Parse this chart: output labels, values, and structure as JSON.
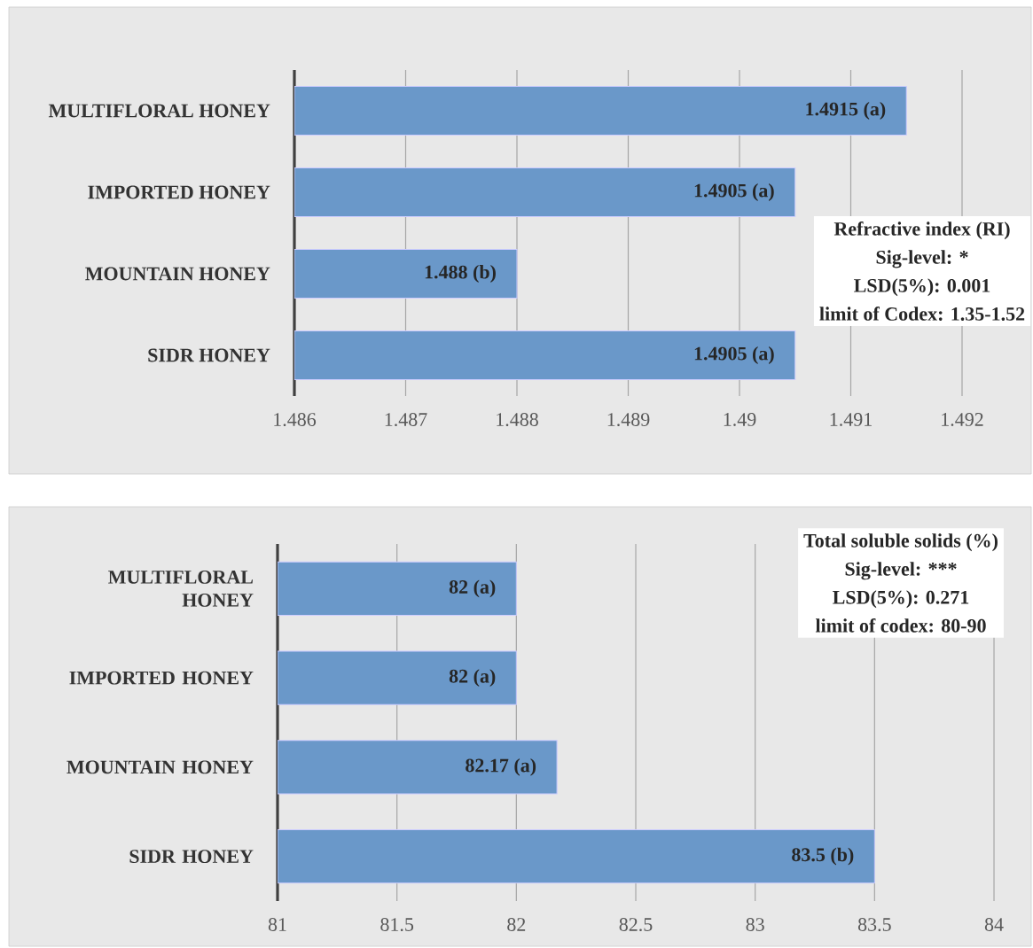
{
  "chart_data": [
    {
      "type": "bar",
      "orientation": "horizontal",
      "categories": [
        "MULTIFLORAL HONEY",
        "IMPORTED HONEY",
        "MOUNTAIN HONEY",
        "SIDR HONEY"
      ],
      "values": [
        1.4915,
        1.4905,
        1.488,
        1.4905
      ],
      "color": "#6a98c9",
      "value_labels": [
        "1.4915 (a)",
        "1.4905 (a)",
        "1.488 (b)",
        "1.4905 (a)"
      ],
      "xlim": [
        1.486,
        1.492
      ],
      "xticks": [
        1.486,
        1.487,
        1.488,
        1.489,
        1.49,
        1.491,
        1.492
      ],
      "grid": "x",
      "annotations": [
        "Refractive index (RI)",
        "Sig-level: *",
        "LSD(5%): 0.001",
        "limit of Codex: 1.35-1.52"
      ]
    },
    {
      "type": "bar",
      "orientation": "horizontal",
      "categories": [
        "MULTIFLORAL HONEY",
        "IMPORTED HONEY",
        "MOUNTAIN HONEY",
        "SIDR HONEY"
      ],
      "values": [
        82,
        82,
        82.17,
        83.5
      ],
      "color": "#6a98c9",
      "value_labels": [
        "82 (a)",
        "82 (a)",
        "82.17 (a)",
        "83.5 (b)"
      ],
      "xlim": [
        81,
        84
      ],
      "xticks": [
        81,
        81.5,
        82,
        82.5,
        83,
        83.5,
        84
      ],
      "grid": "x",
      "annotations": [
        "Total soluble solids (%)",
        "Sig-level: ***",
        "LSD(5%): 0.271",
        "limit of codex: 80-90"
      ]
    }
  ]
}
